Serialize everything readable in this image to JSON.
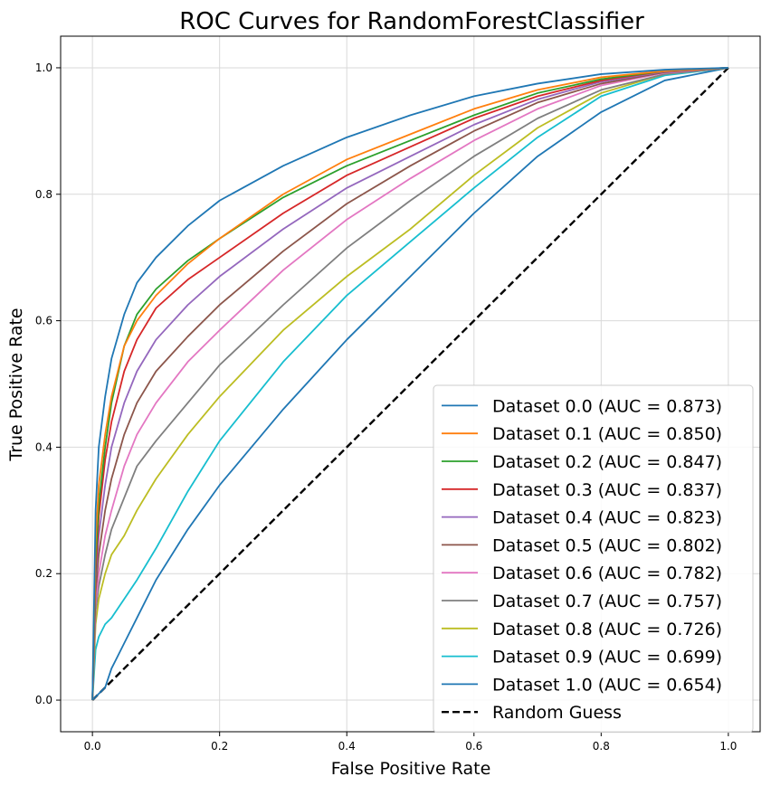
{
  "chart_data": {
    "type": "line",
    "title": "ROC Curves for RandomForestClassifier",
    "xlabel": "False Positive Rate",
    "ylabel": "True Positive Rate",
    "xlim": [
      -0.05,
      1.05
    ],
    "ylim": [
      -0.05,
      1.05
    ],
    "xticks": [
      "0.0",
      "0.2",
      "0.4",
      "0.6",
      "0.8",
      "1.0"
    ],
    "yticks": [
      "0.0",
      "0.2",
      "0.4",
      "0.6",
      "0.8",
      "1.0"
    ],
    "grid": true,
    "legend_position": "lower-right",
    "series": [
      {
        "name": "Dataset 0.0 (AUC = 0.873)",
        "color": "#1f77b4",
        "x": [
          0,
          0.005,
          0.01,
          0.02,
          0.03,
          0.05,
          0.07,
          0.1,
          0.15,
          0.2,
          0.3,
          0.4,
          0.5,
          0.6,
          0.7,
          0.8,
          0.9,
          1.0
        ],
        "y": [
          0,
          0.3,
          0.4,
          0.48,
          0.54,
          0.61,
          0.66,
          0.7,
          0.75,
          0.79,
          0.845,
          0.89,
          0.925,
          0.955,
          0.975,
          0.99,
          0.997,
          1.0
        ]
      },
      {
        "name": "Dataset 0.1 (AUC = 0.850)",
        "color": "#ff7f0e",
        "x": [
          0,
          0.005,
          0.01,
          0.02,
          0.03,
          0.05,
          0.07,
          0.1,
          0.15,
          0.2,
          0.3,
          0.4,
          0.5,
          0.6,
          0.7,
          0.8,
          0.9,
          1.0
        ],
        "y": [
          0,
          0.25,
          0.34,
          0.42,
          0.48,
          0.56,
          0.6,
          0.64,
          0.69,
          0.73,
          0.8,
          0.855,
          0.895,
          0.935,
          0.965,
          0.985,
          0.995,
          1.0
        ]
      },
      {
        "name": "Dataset 0.2 (AUC = 0.847)",
        "color": "#2ca02c",
        "x": [
          0,
          0.005,
          0.01,
          0.02,
          0.03,
          0.05,
          0.07,
          0.1,
          0.15,
          0.2,
          0.3,
          0.4,
          0.5,
          0.6,
          0.7,
          0.8,
          0.9,
          1.0
        ],
        "y": [
          0,
          0.22,
          0.31,
          0.4,
          0.47,
          0.56,
          0.61,
          0.65,
          0.695,
          0.73,
          0.795,
          0.845,
          0.885,
          0.925,
          0.96,
          0.982,
          0.995,
          1.0
        ]
      },
      {
        "name": "Dataset 0.3 (AUC = 0.837)",
        "color": "#d62728",
        "x": [
          0,
          0.005,
          0.01,
          0.02,
          0.03,
          0.05,
          0.07,
          0.1,
          0.15,
          0.2,
          0.3,
          0.4,
          0.5,
          0.6,
          0.7,
          0.8,
          0.9,
          1.0
        ],
        "y": [
          0,
          0.2,
          0.29,
          0.38,
          0.44,
          0.52,
          0.57,
          0.62,
          0.665,
          0.7,
          0.77,
          0.83,
          0.875,
          0.92,
          0.955,
          0.98,
          0.995,
          1.0
        ]
      },
      {
        "name": "Dataset 0.4 (AUC = 0.823)",
        "color": "#9467bd",
        "x": [
          0,
          0.005,
          0.01,
          0.02,
          0.03,
          0.05,
          0.07,
          0.1,
          0.15,
          0.2,
          0.3,
          0.4,
          0.5,
          0.6,
          0.7,
          0.8,
          0.9,
          1.0
        ],
        "y": [
          0,
          0.19,
          0.26,
          0.34,
          0.4,
          0.47,
          0.52,
          0.57,
          0.625,
          0.67,
          0.745,
          0.81,
          0.86,
          0.91,
          0.95,
          0.978,
          0.994,
          1.0
        ]
      },
      {
        "name": "Dataset 0.5 (AUC = 0.802)",
        "color": "#8c564b",
        "x": [
          0,
          0.005,
          0.01,
          0.02,
          0.03,
          0.05,
          0.07,
          0.1,
          0.15,
          0.2,
          0.3,
          0.4,
          0.5,
          0.6,
          0.7,
          0.8,
          0.9,
          1.0
        ],
        "y": [
          0,
          0.17,
          0.23,
          0.3,
          0.35,
          0.42,
          0.47,
          0.52,
          0.575,
          0.625,
          0.71,
          0.785,
          0.845,
          0.9,
          0.945,
          0.975,
          0.993,
          1.0
        ]
      },
      {
        "name": "Dataset 0.6 (AUC = 0.782)",
        "color": "#e377c2",
        "x": [
          0,
          0.005,
          0.01,
          0.02,
          0.03,
          0.05,
          0.07,
          0.1,
          0.15,
          0.2,
          0.3,
          0.4,
          0.5,
          0.6,
          0.7,
          0.8,
          0.9,
          1.0
        ],
        "y": [
          0,
          0.15,
          0.2,
          0.26,
          0.3,
          0.37,
          0.42,
          0.47,
          0.535,
          0.585,
          0.68,
          0.76,
          0.825,
          0.885,
          0.935,
          0.972,
          0.992,
          1.0
        ]
      },
      {
        "name": "Dataset 0.7 (AUC = 0.757)",
        "color": "#7f7f7f",
        "x": [
          0,
          0.005,
          0.01,
          0.02,
          0.03,
          0.05,
          0.07,
          0.1,
          0.15,
          0.2,
          0.3,
          0.4,
          0.5,
          0.6,
          0.7,
          0.8,
          0.9,
          1.0
        ],
        "y": [
          0,
          0.14,
          0.18,
          0.23,
          0.27,
          0.32,
          0.37,
          0.41,
          0.47,
          0.53,
          0.625,
          0.715,
          0.79,
          0.86,
          0.92,
          0.965,
          0.99,
          1.0
        ]
      },
      {
        "name": "Dataset 0.8 (AUC = 0.726)",
        "color": "#bcbd22",
        "x": [
          0,
          0.005,
          0.01,
          0.02,
          0.03,
          0.05,
          0.07,
          0.1,
          0.15,
          0.2,
          0.3,
          0.4,
          0.5,
          0.6,
          0.7,
          0.8,
          0.9,
          1.0
        ],
        "y": [
          0,
          0.12,
          0.16,
          0.2,
          0.23,
          0.26,
          0.3,
          0.35,
          0.42,
          0.48,
          0.585,
          0.67,
          0.745,
          0.83,
          0.905,
          0.96,
          0.99,
          1.0
        ]
      },
      {
        "name": "Dataset 0.9 (AUC = 0.699)",
        "color": "#17becf",
        "x": [
          0,
          0.005,
          0.01,
          0.02,
          0.03,
          0.05,
          0.07,
          0.1,
          0.15,
          0.2,
          0.3,
          0.4,
          0.5,
          0.6,
          0.7,
          0.8,
          0.9,
          1.0
        ],
        "y": [
          0,
          0.08,
          0.1,
          0.12,
          0.13,
          0.16,
          0.19,
          0.24,
          0.33,
          0.41,
          0.535,
          0.64,
          0.725,
          0.81,
          0.89,
          0.955,
          0.988,
          1.0
        ]
      },
      {
        "name": "Dataset 1.0 (AUC = 0.654)",
        "color": "#1f77b4",
        "x": [
          0,
          0.01,
          0.02,
          0.03,
          0.05,
          0.07,
          0.1,
          0.15,
          0.2,
          0.25,
          0.3,
          0.4,
          0.5,
          0.6,
          0.7,
          0.8,
          0.9,
          1.0
        ],
        "y": [
          0,
          0.01,
          0.02,
          0.05,
          0.09,
          0.13,
          0.19,
          0.27,
          0.34,
          0.4,
          0.46,
          0.57,
          0.67,
          0.77,
          0.86,
          0.93,
          0.98,
          1.0
        ]
      }
    ],
    "reference_line": {
      "name": "Random Guess",
      "color": "#000000",
      "style": "dashed",
      "x": [
        0,
        1
      ],
      "y": [
        0,
        1
      ]
    }
  }
}
